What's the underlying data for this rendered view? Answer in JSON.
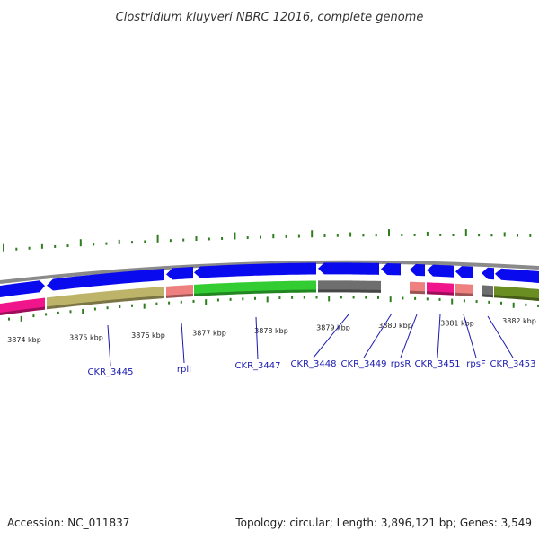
{
  "title": "Clostridium kluyveri NBRC 12016, complete genome",
  "accession": "Accession: NC_011837",
  "summary": "Topology: circular; Length: 3,896,121 bp; Genes: 3,549",
  "ticks": [
    "3874 kbp",
    "3875 kbp",
    "3876 kbp",
    "3877 kbp",
    "3878 kbp",
    "3879 kbp",
    "3880 kbp",
    "3881 kbp",
    "3882 kbp"
  ],
  "genes": [
    "CKR_3445",
    "rplI",
    "CKR_3447",
    "CKR_3448",
    "CKR_3449",
    "rpsR",
    "CKR_3451",
    "rpsF",
    "CKR_3453"
  ],
  "colors": {
    "cds": "#0a0aee",
    "ring_grey": "#8a8a8a",
    "magenta": "#f0158a",
    "khaki": "#bdb46a",
    "salmon": "#ee8080",
    "green": "#33cc33",
    "dark_grey": "#6e6e6e",
    "olive": "#6b8e23",
    "gc_tick": "#2e7d1e",
    "label": "#1a1ab0"
  }
}
